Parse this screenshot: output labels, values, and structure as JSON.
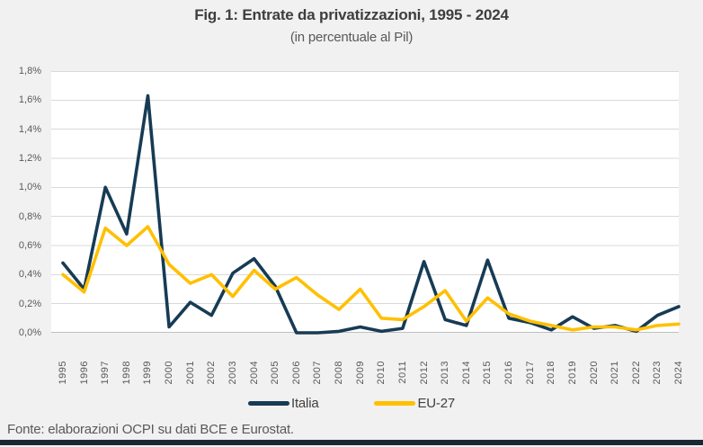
{
  "title": "Fig. 1: Entrate da privatizzazioni, 1995 - 2024",
  "subtitle": "(in percentuale al Pil)",
  "footer": "Fonte: elaborazioni OCPI su dati BCE e Eurostat.",
  "colors": {
    "background": "#f1f1f1",
    "plot_background": "#ffffff",
    "gridline": "#d9d9d9",
    "axis_line": "#bfbfbf",
    "title_text": "#3e3e3e",
    "tick_text": "#595959",
    "legend_text": "#404040",
    "footer_text": "#595959",
    "bottom_bar": "#1a2835",
    "italia_line": "#173b54",
    "eu27_line": "#ffc000"
  },
  "chart_data": {
    "type": "line",
    "title": "Fig. 1: Entrate da privatizzazioni, 1995 - 2024",
    "subtitle": "(in percentuale al Pil)",
    "xlabel": "",
    "ylabel": "",
    "grid": true,
    "legend_position": "bottom",
    "ylim": [
      0,
      1.8
    ],
    "ytick_step": 0.2,
    "ytick_labels": [
      "0,0%",
      "0,2%",
      "0,4%",
      "0,6%",
      "0,8%",
      "1,0%",
      "1,2%",
      "1,4%",
      "1,6%",
      "1,8%"
    ],
    "categories": [
      "1995",
      "1996",
      "1997",
      "1998",
      "1999",
      "2000",
      "2001",
      "2002",
      "2003",
      "2004",
      "2005",
      "2006",
      "2007",
      "2008",
      "2009",
      "2010",
      "2011",
      "2012",
      "2013",
      "2014",
      "2015",
      "2016",
      "2017",
      "2018",
      "2019",
      "2020",
      "2021",
      "2022",
      "2023",
      "2024"
    ],
    "series": [
      {
        "name": "Italia",
        "color": "#173b54",
        "values": [
          0.48,
          0.3,
          1.0,
          0.68,
          1.63,
          0.04,
          0.21,
          0.12,
          0.41,
          0.51,
          0.32,
          0.0,
          0.0,
          0.01,
          0.04,
          0.01,
          0.03,
          0.49,
          0.09,
          0.05,
          0.5,
          0.1,
          0.07,
          0.02,
          0.11,
          0.03,
          0.05,
          0.01,
          0.12,
          0.18
        ]
      },
      {
        "name": "EU-27",
        "color": "#ffc000",
        "values": [
          0.4,
          0.28,
          0.72,
          0.6,
          0.73,
          0.47,
          0.34,
          0.4,
          0.25,
          0.43,
          0.3,
          0.38,
          0.26,
          0.16,
          0.3,
          0.1,
          0.09,
          0.18,
          0.29,
          0.08,
          0.24,
          0.13,
          0.08,
          0.05,
          0.02,
          0.04,
          0.04,
          0.02,
          0.05,
          0.06
        ]
      }
    ]
  },
  "legend": {
    "items": [
      {
        "label": "Italia"
      },
      {
        "label": "EU-27"
      }
    ]
  }
}
